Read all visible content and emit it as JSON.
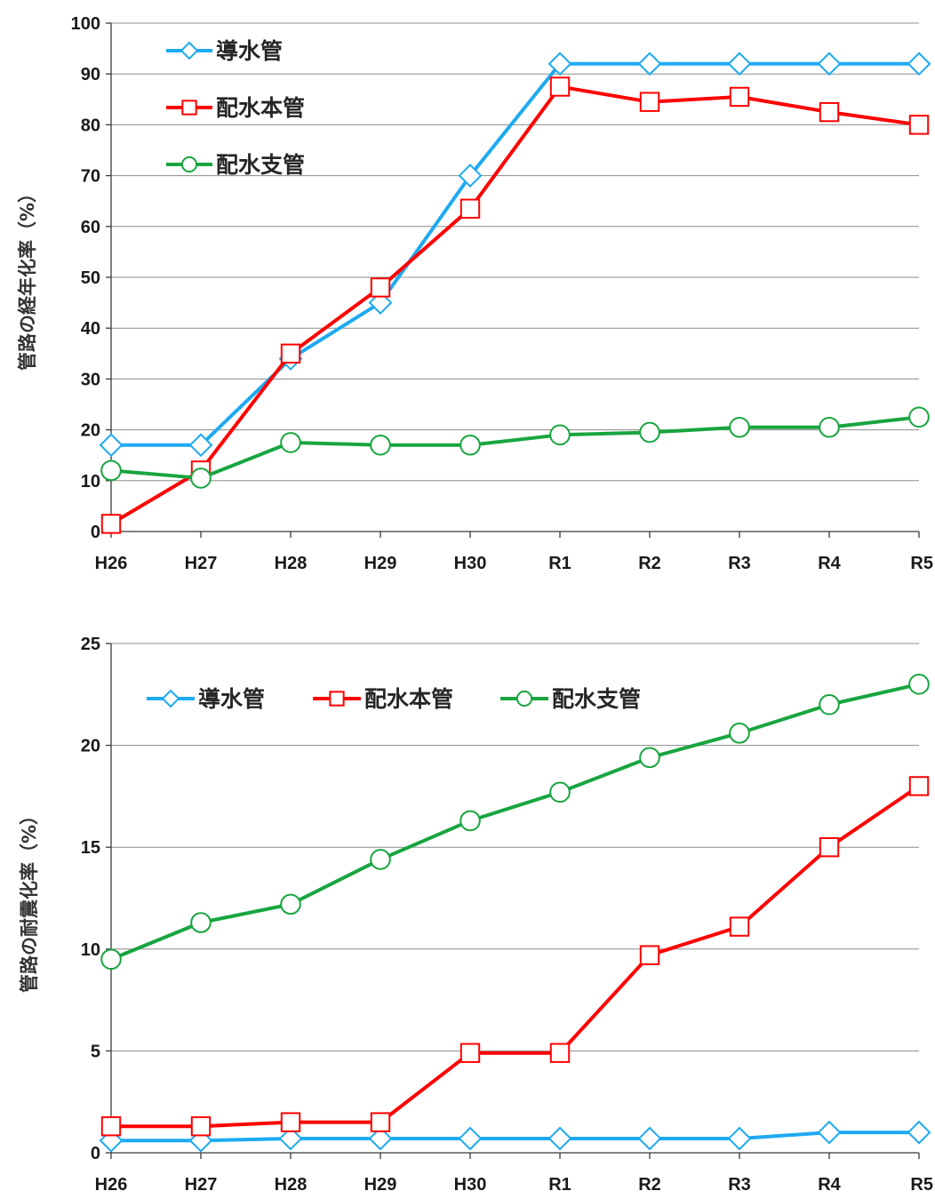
{
  "colors": {
    "dousui": "#1eaaf1",
    "haisui_hon": "#ff0000",
    "haisui_shi": "#18a540"
  },
  "chart_data": [
    {
      "type": "line",
      "title": "",
      "xlabel": "",
      "ylabel": "管路の経年化率（%）",
      "categories": [
        "H26",
        "H27",
        "H28",
        "H29",
        "H30",
        "R1",
        "R2",
        "R3",
        "R4",
        "R5"
      ],
      "ylim": [
        0,
        100
      ],
      "yticks": [
        0,
        10,
        20,
        30,
        40,
        50,
        60,
        70,
        80,
        90,
        100
      ],
      "grid": true,
      "legend_position": "top-left",
      "series": [
        {
          "name": "導水管",
          "marker": "diamond",
          "values": [
            17,
            17,
            34,
            45,
            70,
            92,
            92,
            92,
            92,
            92
          ]
        },
        {
          "name": "配水本管",
          "marker": "square",
          "values": [
            1.5,
            12,
            35,
            48,
            63.5,
            87.5,
            84.5,
            85.5,
            82.5,
            80
          ]
        },
        {
          "name": "配水支管",
          "marker": "circle",
          "values": [
            12,
            10.5,
            17.5,
            17,
            17,
            19,
            19.5,
            20.5,
            20.5,
            22.5
          ]
        }
      ]
    },
    {
      "type": "line",
      "title": "",
      "xlabel": "",
      "ylabel": "管路の耐震化率（%）",
      "categories": [
        "H26",
        "H27",
        "H28",
        "H29",
        "H30",
        "R1",
        "R2",
        "R3",
        "R4",
        "R5"
      ],
      "ylim": [
        0,
        25
      ],
      "yticks": [
        0,
        5,
        10,
        15,
        20,
        25
      ],
      "grid": true,
      "legend_position": "top",
      "series": [
        {
          "name": "導水管",
          "marker": "diamond",
          "values": [
            0.6,
            0.6,
            0.7,
            0.7,
            0.7,
            0.7,
            0.7,
            0.7,
            1.0,
            1.0
          ]
        },
        {
          "name": "配水本管",
          "marker": "square",
          "values": [
            1.3,
            1.3,
            1.5,
            1.5,
            4.9,
            4.9,
            9.7,
            11.1,
            15.0,
            18.0
          ]
        },
        {
          "name": "配水支管",
          "marker": "circle",
          "values": [
            9.5,
            11.3,
            12.2,
            14.4,
            16.3,
            17.7,
            19.4,
            20.6,
            22.0,
            23.0
          ]
        }
      ]
    }
  ]
}
